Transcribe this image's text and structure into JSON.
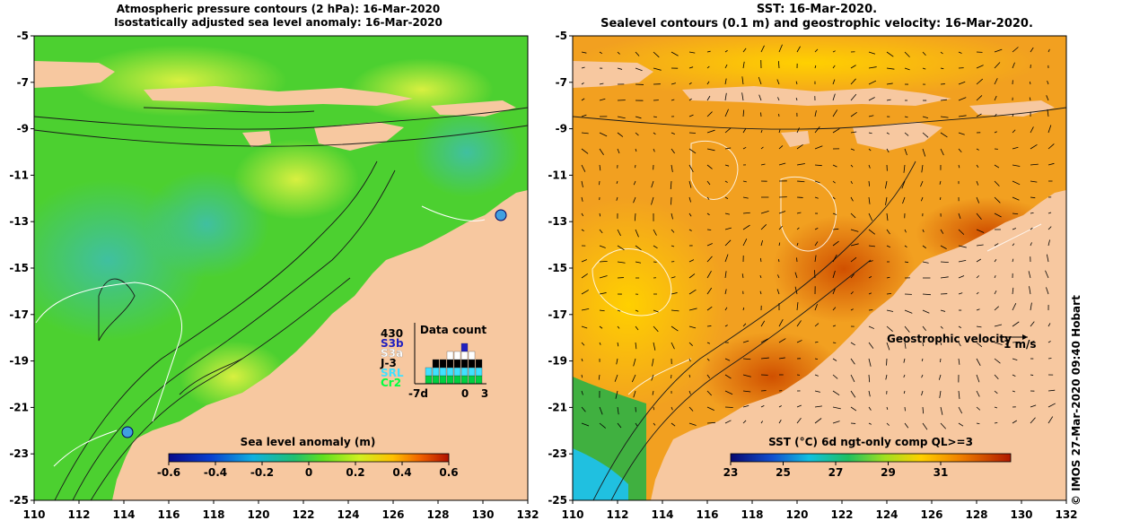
{
  "left_panel": {
    "title_line1": "Atmospheric pressure contours (2 hPa): 16-Mar-2020",
    "title_line2": "Isostatically adjusted sea level anomaly: 16-Mar-2020",
    "y_ticks": [
      "-5",
      "-7",
      "-9",
      "-11",
      "-13",
      "-15",
      "-17",
      "-19",
      "-21",
      "-23",
      "-25"
    ],
    "x_ticks": [
      "110",
      "112",
      "114",
      "116",
      "118",
      "120",
      "122",
      "124",
      "126",
      "128",
      "130",
      "132"
    ],
    "colorbar_label": "Sea level anomaly (m)",
    "colorbar_ticks": [
      "-0.6",
      "-0.4",
      "-0.2",
      "0",
      "0.2",
      "0.4",
      "0.6"
    ],
    "inset": {
      "title": "Data count",
      "labels": [
        "430",
        "S3b",
        "S3a",
        "J-3",
        "SRL",
        "Cr2"
      ],
      "label_colors": [
        "#000000",
        "#2020c0",
        "#ffffff",
        "#000000",
        "#40e0ff",
        "#00ff40"
      ],
      "x_labels": [
        "-7d",
        "0",
        "3"
      ]
    }
  },
  "right_panel": {
    "title_line1": "SST: 16-Mar-2020.",
    "title_line2": "Sealevel contours (0.1 m) and geostrophic velocity: 16-Mar-2020.",
    "y_ticks": [
      "-5",
      "-7",
      "-9",
      "-11",
      "-13",
      "-15",
      "-17",
      "-19",
      "-21",
      "-23",
      "-25"
    ],
    "x_ticks": [
      "110",
      "112",
      "114",
      "116",
      "118",
      "120",
      "122",
      "124",
      "126",
      "128",
      "130",
      "132"
    ],
    "colorbar_label": "SST (°C) 6d ngt-only comp QL>=3",
    "colorbar_ticks": [
      "23",
      "25",
      "27",
      "29",
      "31"
    ],
    "velocity_legend": "Geostrophic velocity",
    "velocity_unit": "1 m/s"
  },
  "credit": "© IMOS 27-Mar-2020 09:40 Hobart"
}
